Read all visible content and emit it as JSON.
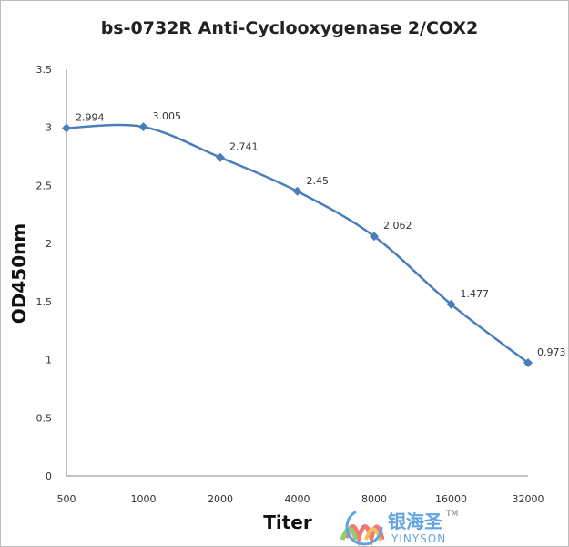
{
  "chart_data": {
    "type": "line",
    "title": "bs-0732R Anti-Cyclooxygenase 2/COX2",
    "xlabel": "Titer",
    "ylabel": "OD450nm",
    "categories": [
      "500",
      "1000",
      "2000",
      "4000",
      "8000",
      "16000",
      "32000"
    ],
    "values": [
      2.994,
      3.005,
      2.741,
      2.45,
      2.062,
      1.477,
      0.973
    ],
    "data_labels": [
      "2.994",
      "3.005",
      "2.741",
      "2.45",
      "2.062",
      "1.477",
      "0.973"
    ],
    "ylim": [
      0,
      3.5
    ],
    "yticks": [
      "0",
      "0.5",
      "1",
      "1.5",
      "2",
      "2.5",
      "3",
      "3.5"
    ],
    "grid": false,
    "smooth": true,
    "marker": "diamond",
    "series_color": "#4a7ebb"
  },
  "watermark": {
    "logo_text": "银海圣",
    "logo_sub": "YINYSON",
    "tm": "TM"
  }
}
